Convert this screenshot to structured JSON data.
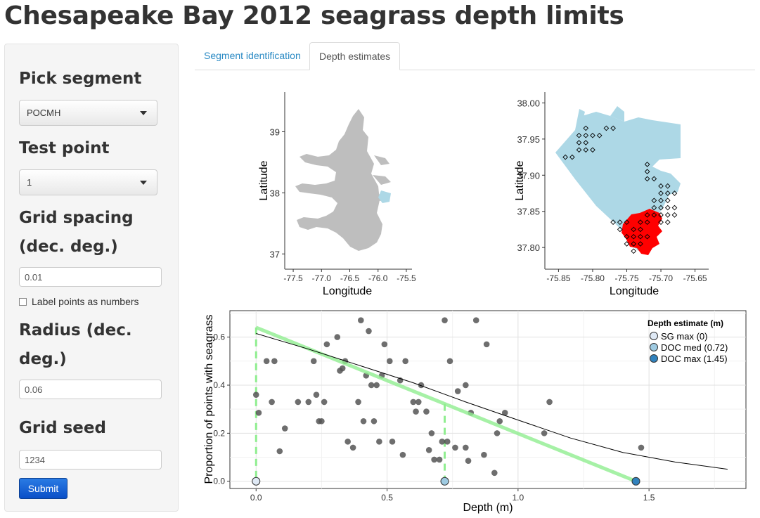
{
  "app": {
    "title": "Chesapeake Bay 2012 seagrass depth limits"
  },
  "sidebar": {
    "segment_label": "Pick segment",
    "segment_value": "POCMH",
    "test_point_label": "Test point",
    "test_point_value": "1",
    "grid_spacing_label_1": "Grid spacing",
    "grid_spacing_label_2": "(dec. deg.)",
    "grid_spacing_value": "0.01",
    "label_points_text": "Label points as numbers",
    "label_points_checked": false,
    "radius_label_1": "Radius (dec.",
    "radius_label_2": "deg.)",
    "radius_value": "0.06",
    "grid_seed_label": "Grid seed",
    "grid_seed_value": "1234",
    "submit_label": "Submit"
  },
  "tabs": [
    {
      "label": "Segment identification",
      "active": false
    },
    {
      "label": "Depth estimates",
      "active": true
    }
  ],
  "colors": {
    "bay": "#bebebe",
    "segment": "#add8e6",
    "seagrass": "#ff0000",
    "fit_line": "#90ee90",
    "curve": "#000000",
    "point": "#555555",
    "sg_max": "#dfe9f5",
    "doc_med": "#9ecae1",
    "doc_max": "#3182bd",
    "link": "#2a8ac4",
    "button": "#0b5ed7"
  },
  "chart_data": [
    {
      "type": "map",
      "xlabel": "Longitude",
      "ylabel": "Latitude",
      "x_ticks": [
        "-77.5",
        "-77.0",
        "-76.5",
        "-76.0",
        "-75.5"
      ],
      "y_ticks": [
        "37",
        "38",
        "39"
      ],
      "xlim": [
        -77.65,
        -75.4
      ],
      "ylim": [
        36.75,
        39.65
      ],
      "highlight_segment": "POCMH"
    },
    {
      "type": "scatter",
      "xlabel": "Longitude",
      "ylabel": "Latitude",
      "x_ticks": [
        "-75.85",
        "-75.80",
        "-75.75",
        "-75.70",
        "-75.65"
      ],
      "y_ticks": [
        "37.80",
        "37.85",
        "37.90",
        "37.95",
        "38.00"
      ],
      "xlim": [
        -75.87,
        -75.63
      ],
      "ylim": [
        37.77,
        38.015
      ],
      "grid_points": [
        [
          -75.84,
          37.925
        ],
        [
          -75.83,
          37.925
        ],
        [
          -75.82,
          37.935
        ],
        [
          -75.81,
          37.935
        ],
        [
          -75.8,
          37.935
        ],
        [
          -75.82,
          37.945
        ],
        [
          -75.81,
          37.945
        ],
        [
          -75.82,
          37.955
        ],
        [
          -75.81,
          37.955
        ],
        [
          -75.8,
          37.955
        ],
        [
          -75.81,
          37.965
        ],
        [
          -75.79,
          37.955
        ],
        [
          -75.78,
          37.965
        ],
        [
          -75.77,
          37.965
        ],
        [
          -75.72,
          37.915
        ],
        [
          -75.72,
          37.905
        ],
        [
          -75.72,
          37.895
        ],
        [
          -75.71,
          37.895
        ],
        [
          -75.7,
          37.885
        ],
        [
          -75.69,
          37.885
        ],
        [
          -75.7,
          37.875
        ],
        [
          -75.69,
          37.875
        ],
        [
          -75.68,
          37.875
        ],
        [
          -75.71,
          37.865
        ],
        [
          -75.7,
          37.865
        ],
        [
          -75.69,
          37.865
        ],
        [
          -75.71,
          37.855
        ],
        [
          -75.7,
          37.855
        ],
        [
          -75.69,
          37.855
        ],
        [
          -75.68,
          37.855
        ],
        [
          -75.72,
          37.845
        ],
        [
          -75.71,
          37.845
        ],
        [
          -75.7,
          37.845
        ],
        [
          -75.69,
          37.845
        ],
        [
          -75.68,
          37.845
        ],
        [
          -75.73,
          37.835
        ],
        [
          -75.72,
          37.835
        ],
        [
          -75.77,
          37.835
        ],
        [
          -75.76,
          37.835
        ],
        [
          -75.75,
          37.835
        ],
        [
          -75.76,
          37.825
        ],
        [
          -75.74,
          37.825
        ],
        [
          -75.73,
          37.825
        ],
        [
          -75.75,
          37.815
        ],
        [
          -75.74,
          37.815
        ],
        [
          -75.73,
          37.815
        ],
        [
          -75.72,
          37.815
        ],
        [
          -75.75,
          37.805
        ],
        [
          -75.74,
          37.805
        ],
        [
          -75.73,
          37.805
        ],
        [
          -75.74,
          37.795
        ],
        [
          -75.7,
          37.835
        ],
        [
          -75.69,
          37.835
        ]
      ]
    },
    {
      "type": "scatter",
      "xlabel": "Depth (m)",
      "ylabel": "Proportion of points with seagrass",
      "x_ticks": [
        "0.0",
        "0.5",
        "1.0",
        "1.5"
      ],
      "y_ticks": [
        "0.0",
        "0.2",
        "0.4",
        "0.6"
      ],
      "xlim": [
        -0.1,
        1.87
      ],
      "ylim": [
        -0.03,
        0.71
      ],
      "points": [
        [
          0.0,
          0.36
        ],
        [
          0.01,
          0.285
        ],
        [
          0.04,
          0.5
        ],
        [
          0.06,
          0.33
        ],
        [
          0.07,
          0.5
        ],
        [
          0.09,
          0.125
        ],
        [
          0.11,
          0.22
        ],
        [
          0.16,
          0.33
        ],
        [
          0.2,
          0.33
        ],
        [
          0.22,
          0.5
        ],
        [
          0.23,
          0.36
        ],
        [
          0.24,
          0.25
        ],
        [
          0.25,
          0.25
        ],
        [
          0.26,
          0.33
        ],
        [
          0.27,
          0.57
        ],
        [
          0.31,
          0.6
        ],
        [
          0.32,
          0.46
        ],
        [
          0.33,
          0.47
        ],
        [
          0.34,
          0.5
        ],
        [
          0.35,
          0.165
        ],
        [
          0.37,
          0.14
        ],
        [
          0.39,
          0.33
        ],
        [
          0.4,
          0.67
        ],
        [
          0.41,
          0.25
        ],
        [
          0.42,
          0.44
        ],
        [
          0.43,
          0.625
        ],
        [
          0.44,
          0.4
        ],
        [
          0.45,
          0.25
        ],
        [
          0.46,
          0.4
        ],
        [
          0.47,
          0.165
        ],
        [
          0.48,
          0.44
        ],
        [
          0.49,
          0.57
        ],
        [
          0.51,
          0.5
        ],
        [
          0.52,
          0.165
        ],
        [
          0.55,
          0.42
        ],
        [
          0.56,
          0.11
        ],
        [
          0.57,
          0.5
        ],
        [
          0.6,
          0.33
        ],
        [
          0.61,
          0.29
        ],
        [
          0.62,
          0.33
        ],
        [
          0.63,
          0.4
        ],
        [
          0.65,
          0.29
        ],
        [
          0.66,
          0.13
        ],
        [
          0.67,
          0.2
        ],
        [
          0.68,
          0.09
        ],
        [
          0.7,
          0.09
        ],
        [
          0.71,
          0.165
        ],
        [
          0.72,
          0.67
        ],
        [
          0.73,
          0.165
        ],
        [
          0.74,
          0.5
        ],
        [
          0.76,
          0.14
        ],
        [
          0.77,
          0.375
        ],
        [
          0.8,
          0.4
        ],
        [
          0.8,
          0.14
        ],
        [
          0.81,
          0.085
        ],
        [
          0.82,
          0.285
        ],
        [
          0.84,
          0.67
        ],
        [
          0.87,
          0.11
        ],
        [
          0.88,
          0.57
        ],
        [
          0.91,
          0.035
        ],
        [
          0.92,
          0.2
        ],
        [
          0.93,
          0.25
        ],
        [
          0.95,
          0.285
        ],
        [
          1.1,
          0.2
        ],
        [
          1.12,
          0.33
        ],
        [
          1.47,
          0.14
        ]
      ],
      "fit_line": [
        [
          0.0,
          0.64
        ],
        [
          1.45,
          0.0
        ]
      ],
      "curve": [
        [
          0.0,
          0.615
        ],
        [
          0.2,
          0.55
        ],
        [
          0.4,
          0.48
        ],
        [
          0.6,
          0.41
        ],
        [
          0.8,
          0.33
        ],
        [
          1.0,
          0.255
        ],
        [
          1.2,
          0.18
        ],
        [
          1.4,
          0.12
        ],
        [
          1.6,
          0.08
        ],
        [
          1.8,
          0.05
        ]
      ],
      "depth_markers": [
        {
          "name": "SG max (0)",
          "depth": 0.0,
          "color": "#dfe9f5"
        },
        {
          "name": "DOC med (0.72)",
          "depth": 0.72,
          "color": "#9ecae1"
        },
        {
          "name": "DOC max (1.45)",
          "depth": 1.45,
          "color": "#3182bd"
        }
      ],
      "legend_title": "Depth estimate (m)",
      "legend_position": "top-right",
      "grid": true
    }
  ]
}
